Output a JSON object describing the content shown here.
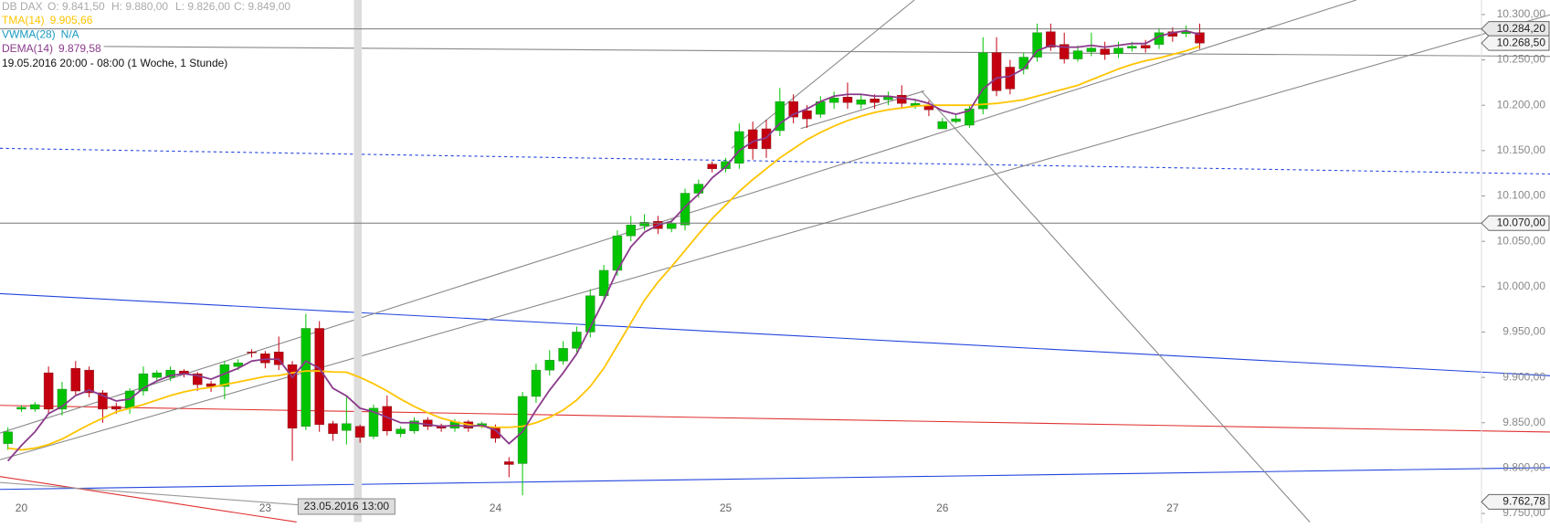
{
  "chart_data": {
    "type": "candlestick",
    "subtitle": "19.05.2016 20:00 - 08:00 (1 Woche, 1 Stunde)",
    "categories": [
      null,
      "20",
      null,
      null,
      null,
      null,
      null,
      null,
      null,
      null,
      null,
      null,
      null,
      null,
      null,
      null,
      null,
      null,
      null,
      "23",
      null,
      null,
      null,
      null,
      null,
      null,
      null,
      null,
      null,
      null,
      null,
      null,
      null,
      null,
      null,
      null,
      "24",
      null,
      null,
      null,
      null,
      null,
      null,
      null,
      null,
      null,
      null,
      null,
      null,
      null,
      null,
      null,
      null,
      "25",
      null,
      null,
      null,
      null,
      null,
      null,
      null,
      null,
      null,
      null,
      null,
      null,
      null,
      null,
      null,
      "26",
      null,
      null,
      null,
      null,
      null,
      null,
      null,
      null,
      null,
      null,
      null,
      null,
      null,
      null,
      null,
      null,
      "27",
      null,
      null
    ],
    "series": [
      {
        "name": "DB DAX",
        "type": "candlestick",
        "up_color": "#00c400",
        "down_color": "#c40010",
        "hover_labels": [
          "O: 9.841,50",
          "H: 9.880,00",
          "L: 9.826,00",
          "C: 9.849,00"
        ],
        "open": [
          9827,
          9865,
          9865,
          9905,
          9865,
          9910,
          9908,
          9883,
          9868,
          9866,
          9885,
          9900,
          9900,
          9907,
          9904,
          9893,
          9890,
          9912,
          9928,
          9926,
          9928,
          9914,
          9846,
          9954,
          9849,
          9841.5,
          9846,
          9835,
          9868,
          9838,
          9841,
          9853,
          9847,
          9844,
          9851,
          9847,
          9845,
          9807,
          9805,
          9879,
          9908,
          9918,
          9932,
          9950,
          9990,
          10018,
          10056,
          10067,
          10072,
          10064,
          10068,
          10103,
          10135,
          10130,
          10136,
          10173,
          10174,
          10172,
          10204,
          10194,
          10190,
          10203,
          10209,
          10201,
          10207,
          10206,
          10211,
          10199,
          10200,
          10174,
          10182,
          10178,
          10196,
          10258,
          10242,
          10240,
          10253,
          10281,
          10267,
          10251,
          10259,
          10262,
          10257,
          10263,
          10266,
          10267,
          10281,
          10279,
          10280
        ],
        "high": [
          9845,
          9869,
          9873,
          9912,
          9895,
          9918,
          9912,
          9886,
          9872,
          9888,
          9912,
          9908,
          9912,
          9909,
          9906,
          9896,
          9918,
          9920,
          9931,
          9929,
          9945,
          9918,
          9970,
          9962,
          9852,
          9880,
          9848,
          9870,
          9880,
          9846,
          9856,
          9856,
          9849,
          9854,
          9853,
          9851,
          9848,
          9812,
          9884,
          9915,
          9930,
          9940,
          9956,
          9997,
          10024,
          10062,
          10078,
          10080,
          10078,
          10074,
          10108,
          10118,
          10138,
          10142,
          10180,
          10182,
          10184,
          10219,
          10212,
          10200,
          10210,
          10215,
          10225,
          10212,
          10212,
          10215,
          10222,
          10206,
          10205,
          10186,
          10189,
          10200,
          10275,
          10275,
          10250,
          10258,
          10290,
          10290,
          10280,
          10266,
          10280,
          10270,
          10270,
          10270,
          10272,
          10285,
          10286,
          10288,
          10290
        ],
        "low": [
          9820,
          9862,
          9862,
          9860,
          9858,
          9880,
          9878,
          9850,
          9860,
          9860,
          9880,
          9896,
          9896,
          9900,
          9885,
          9884,
          9876,
          9908,
          9922,
          9910,
          9908,
          9808,
          9842,
          9840,
          9830,
          9826,
          9828,
          9832,
          9836,
          9834,
          9838,
          9842,
          9840,
          9840,
          9840,
          9844,
          9828,
          9790,
          9770,
          9872,
          9902,
          9914,
          9926,
          9944,
          9984,
          10012,
          10050,
          10062,
          10058,
          10060,
          10062,
          10098,
          10126,
          10126,
          10130,
          10140,
          10142,
          10166,
          10180,
          10175,
          10186,
          10196,
          10196,
          10196,
          10196,
          10200,
          10196,
          10196,
          10188,
          10176,
          10180,
          10175,
          10190,
          10210,
          10212,
          10234,
          10248,
          10260,
          10246,
          10248,
          10254,
          10250,
          10252,
          10259,
          10258,
          10262,
          10270,
          10275,
          10262
        ],
        "close": [
          9840,
          9867,
          9870,
          9865,
          9887,
          9885,
          9883,
          9865,
          9865,
          9885,
          9904,
          9905,
          9908,
          9904,
          9892,
          9890,
          9914,
          9916,
          9927,
          9916,
          9914,
          9844,
          9954,
          9848,
          9838,
          9849,
          9834,
          9866,
          9841,
          9843,
          9852,
          9846,
          9844,
          9851,
          9844,
          9849,
          9833,
          9804,
          9879,
          9908,
          9919,
          9932,
          9950,
          9990,
          10018,
          10056,
          10068,
          10071,
          10064,
          10070,
          10103,
          10113,
          10130,
          10138,
          10171,
          10152,
          10152,
          10204,
          10187,
          10185,
          10204,
          10208,
          10203,
          10206,
          10203,
          10209,
          10202,
          10202,
          10195,
          10182,
          10185,
          10196,
          10258,
          10216,
          10218,
          10253,
          10280,
          10264,
          10251,
          10260,
          10263,
          10256,
          10263,
          10265,
          10263,
          10280,
          10276,
          10281,
          10268.5
        ]
      },
      {
        "name": "TMA(14)",
        "type": "line",
        "color": "#ffc400",
        "hover_label": "9.905,66",
        "values": [
          9822,
          9820,
          9822,
          9826,
          9832,
          9840,
          9848,
          9855,
          9862,
          9866,
          9870,
          9875,
          9880,
          9884,
          9887,
          9889,
          9892,
          9895,
          9898,
          9901,
          9902,
          9905,
          9907,
          9907,
          9906,
          9905.66,
          9900,
          9893,
          9885,
          9876,
          9868,
          9861,
          9855,
          9851,
          9848,
          9846,
          9845,
          9845,
          9846,
          9850,
          9856,
          9864,
          9875,
          9890,
          9910,
          9935,
          9960,
          9985,
          10005,
          10022,
          10040,
          10058,
          10075,
          10090,
          10105,
          10118,
          10130,
          10142,
          10152,
          10162,
          10170,
          10177,
          10183,
          10188,
          10192,
          10195,
          10197,
          10199,
          10200,
          10200,
          10200,
          10200,
          10201,
          10202,
          10204,
          10206,
          10210,
          10214,
          10218,
          10222,
          10228,
          10234,
          10240,
          10245,
          10249,
          10252,
          10256,
          10260,
          10265
        ]
      },
      {
        "name": "VWMA(28)",
        "type": "line",
        "color": "#1a9ac0",
        "hover_label": "N/A"
      },
      {
        "name": "DEMA(14)",
        "type": "line",
        "color": "#8b3a8b",
        "hover_label": "9.879,58",
        "values": [
          9808,
          9825,
          9840,
          9860,
          9868,
          9880,
          9886,
          9880,
          9874,
          9876,
          9888,
          9896,
          9902,
          9904,
          9902,
          9898,
          9904,
          9910,
          9918,
          9920,
          9920,
          9900,
          9918,
          9910,
          9888,
          9879.58,
          9866,
          9862,
          9856,
          9850,
          9850,
          9848,
          9846,
          9847,
          9846,
          9847,
          9842,
          9827,
          9840,
          9864,
          9886,
          9905,
          9926,
          9955,
          9985,
          10018,
          10044,
          10060,
          10068,
          10072,
          10088,
          10102,
          10120,
          10132,
          10150,
          10160,
          10164,
          10180,
          10190,
          10196,
          10204,
          10210,
          10212,
          10212,
          10210,
          10210,
          10208,
          10206,
          10202,
          10194,
          10190,
          10194,
          10218,
          10230,
          10232,
          10240,
          10260,
          10266,
          10264,
          10264,
          10266,
          10264,
          10266,
          10268,
          10268,
          10276,
          10280,
          10282,
          10278
        ]
      }
    ],
    "ylim": [
      9739,
      10316
    ],
    "yticks": [
      {
        "value": 9750,
        "label": "9.750,00"
      },
      {
        "value": 9800,
        "label": "9.800,00"
      },
      {
        "value": 9850,
        "label": "9.850,00"
      },
      {
        "value": 9900,
        "label": "9.900,00"
      },
      {
        "value": 9950,
        "label": "9.950,00"
      },
      {
        "value": 10000,
        "label": "10.000,00"
      },
      {
        "value": 10050,
        "label": "10.050,00"
      },
      {
        "value": 10100,
        "label": "10.100,00"
      },
      {
        "value": 10150,
        "label": "10.150,00"
      },
      {
        "value": 10200,
        "label": "10.200,00"
      },
      {
        "value": 10250,
        "label": "10.250,00"
      },
      {
        "value": 10300,
        "label": "10.300,00"
      }
    ],
    "price_lines": [
      {
        "value": 10284.2,
        "label": "10.284,20",
        "line": true
      },
      {
        "value": 10268.5,
        "label": "10.268,50",
        "line": false
      },
      {
        "value": 10070,
        "label": "10.070,00",
        "line": true
      },
      {
        "value": 9762.78,
        "label": "9.762,78",
        "line": false
      }
    ],
    "crosshair": {
      "label": "23.05.2016 13:00"
    },
    "grid": false
  }
}
